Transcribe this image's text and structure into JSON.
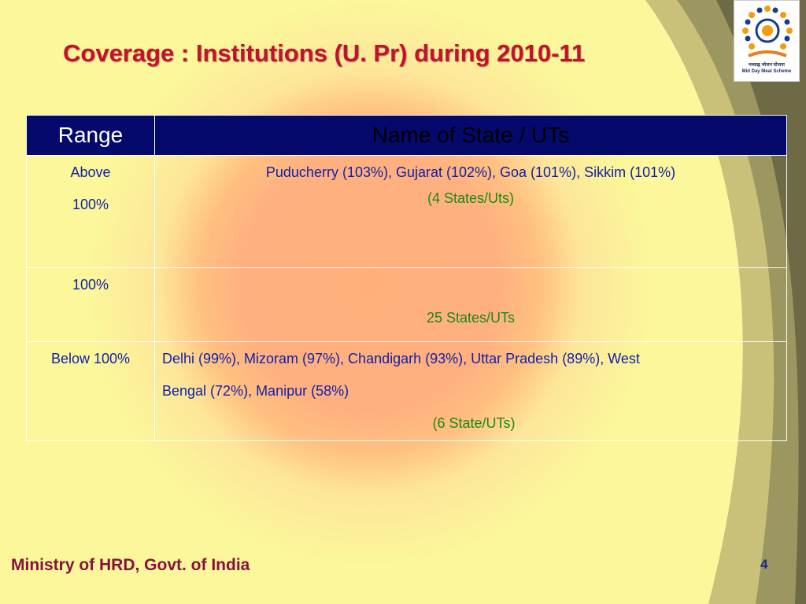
{
  "slide": {
    "title": "Coverage : Institutions (U. Pr) during 2010-11",
    "footer": "Ministry of HRD, Govt. of India",
    "page_number": "4",
    "logo": {
      "hindi_text": "मध्याह्न भोजन योजना",
      "english_text": "Mid Day Meal Scheme"
    }
  },
  "table": {
    "headers": {
      "range": "Range",
      "name": "Name of State / UTs"
    },
    "rows": [
      {
        "range_line1": "Above",
        "range_line2": "100%",
        "names": "Puducherry  (103%),  Gujarat  (102%), Goa (101%), Sikkim (101%)",
        "count": "(4 States/Uts)"
      },
      {
        "range_line1": "100%",
        "names": "",
        "count": "25 States/UTs"
      },
      {
        "range_line1": "Below 100%",
        "names_line1": "Delhi (99%),  Mizoram (97%), Chandigarh (93%), Uttar Pradesh (89%), West",
        "names_line2": "Bengal (72%), Manipur (58%)",
        "count": "(6 State/UTs)"
      }
    ]
  },
  "colors": {
    "title": "#c8102e",
    "header_bg": "#05096b",
    "body_text": "#0f1fa8",
    "count_text": "#1a8a14",
    "background": "#fbf79a"
  }
}
